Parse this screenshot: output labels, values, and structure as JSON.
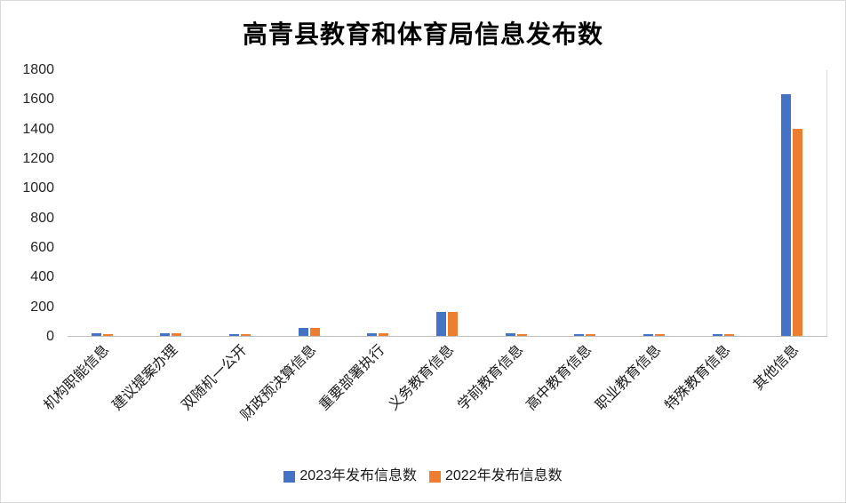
{
  "chart_data": {
    "type": "bar",
    "title": "高青县教育和体育局信息发布数",
    "categories": [
      "机构职能信息",
      "建议提案办理",
      "双随机一公开",
      "财政预决算信息",
      "重要部署执行",
      "义务教育信息",
      "学前教育信息",
      "高中教育信息",
      "职业教育信息",
      "特殊教育信息",
      "其他信息"
    ],
    "series": [
      {
        "name": "2023年发布信息数",
        "color": "#4472C4",
        "values": [
          20,
          20,
          15,
          55,
          20,
          165,
          20,
          12,
          12,
          12,
          1630
        ]
      },
      {
        "name": "2022年发布信息数",
        "color": "#ED7D31",
        "values": [
          15,
          20,
          10,
          55,
          20,
          165,
          12,
          10,
          10,
          10,
          1400
        ]
      }
    ],
    "ylabel": "",
    "xlabel": "",
    "ylim": [
      0,
      1800
    ],
    "ytick_step": 200,
    "grid": false,
    "legend_position": "bottom"
  }
}
